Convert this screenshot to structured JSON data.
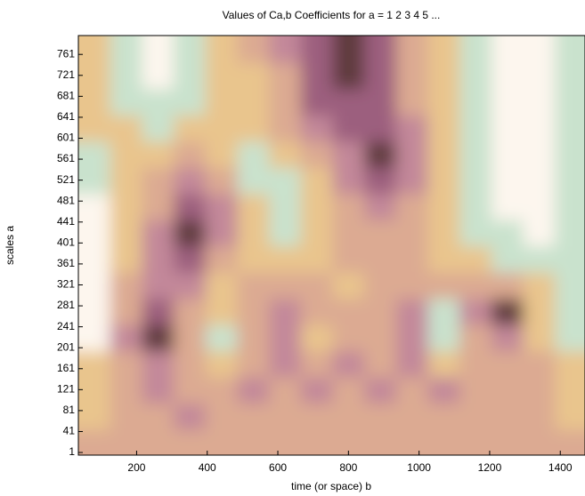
{
  "chart_data": {
    "type": "heatmap",
    "title": "Values of Ca,b Coefficients for a =  1 2 3 4 5 ...",
    "x_label": "time (or space) b",
    "y_label": "scales a",
    "xlim": [
      35,
      1470
    ],
    "ylim": [
      -4,
      797
    ],
    "xticks": [
      200,
      400,
      600,
      800,
      1000,
      1200,
      1400
    ],
    "yticks": [
      1,
      41,
      81,
      121,
      161,
      201,
      241,
      281,
      321,
      361,
      401,
      441,
      481,
      521,
      561,
      601,
      641,
      681,
      721,
      761
    ],
    "x": [
      80,
      170,
      260,
      350,
      440,
      530,
      620,
      710,
      800,
      890,
      980,
      1070,
      1160,
      1250,
      1340,
      1430
    ],
    "y": [
      20,
      70,
      120,
      170,
      220,
      270,
      320,
      370,
      420,
      470,
      520,
      570,
      620,
      670,
      720,
      770
    ],
    "colorscale": [
      "#fdf6ee",
      "#c9e2cd",
      "#e9c58d",
      "#dcaa92",
      "#c3889a",
      "#9c5f7e",
      "#5e3b3c"
    ],
    "z": [
      [
        3,
        3,
        3,
        3,
        3,
        3,
        3,
        3,
        3,
        3,
        3,
        3,
        3,
        3,
        3,
        3
      ],
      [
        2,
        3,
        3,
        4,
        3,
        3,
        3,
        3,
        3,
        3,
        3,
        3,
        3,
        3,
        3,
        2
      ],
      [
        2,
        3,
        4,
        3,
        3,
        4,
        3,
        4,
        3,
        4,
        3,
        4,
        3,
        3,
        3,
        2
      ],
      [
        2,
        3,
        4,
        3,
        2,
        3,
        4,
        3,
        4,
        3,
        4,
        2,
        3,
        3,
        3,
        2
      ],
      [
        0,
        4,
        6,
        3,
        1,
        3,
        4,
        2,
        3,
        3,
        4,
        1,
        3,
        4,
        2,
        1
      ],
      [
        0,
        3,
        5,
        3,
        2,
        3,
        4,
        3,
        3,
        3,
        4,
        1,
        4,
        6,
        2,
        1
      ],
      [
        0,
        3,
        4,
        4,
        2,
        3,
        3,
        3,
        2,
        3,
        3,
        3,
        3,
        3,
        2,
        1
      ],
      [
        0,
        2,
        4,
        5,
        3,
        2,
        2,
        2,
        3,
        3,
        3,
        2,
        2,
        1,
        1,
        1
      ],
      [
        0,
        2,
        4,
        6,
        4,
        2,
        1,
        2,
        3,
        3,
        3,
        2,
        1,
        1,
        0,
        1
      ],
      [
        0,
        2,
        3,
        5,
        4,
        2,
        1,
        2,
        3,
        4,
        3,
        2,
        1,
        0,
        0,
        1
      ],
      [
        1,
        2,
        3,
        4,
        3,
        1,
        1,
        2,
        4,
        5,
        4,
        2,
        1,
        0,
        0,
        1
      ],
      [
        1,
        2,
        2,
        3,
        2,
        1,
        2,
        3,
        4,
        6,
        4,
        2,
        1,
        0,
        0,
        1
      ],
      [
        2,
        2,
        1,
        2,
        2,
        2,
        3,
        4,
        5,
        5,
        4,
        2,
        1,
        0,
        0,
        1
      ],
      [
        2,
        1,
        1,
        1,
        2,
        2,
        3,
        5,
        5,
        5,
        3,
        2,
        1,
        0,
        0,
        1
      ],
      [
        2,
        1,
        0,
        1,
        2,
        2,
        3,
        5,
        6,
        5,
        3,
        2,
        1,
        0,
        0,
        1
      ],
      [
        2,
        1,
        0,
        1,
        2,
        3,
        4,
        5,
        6,
        5,
        3,
        2,
        1,
        0,
        0,
        1
      ]
    ]
  }
}
